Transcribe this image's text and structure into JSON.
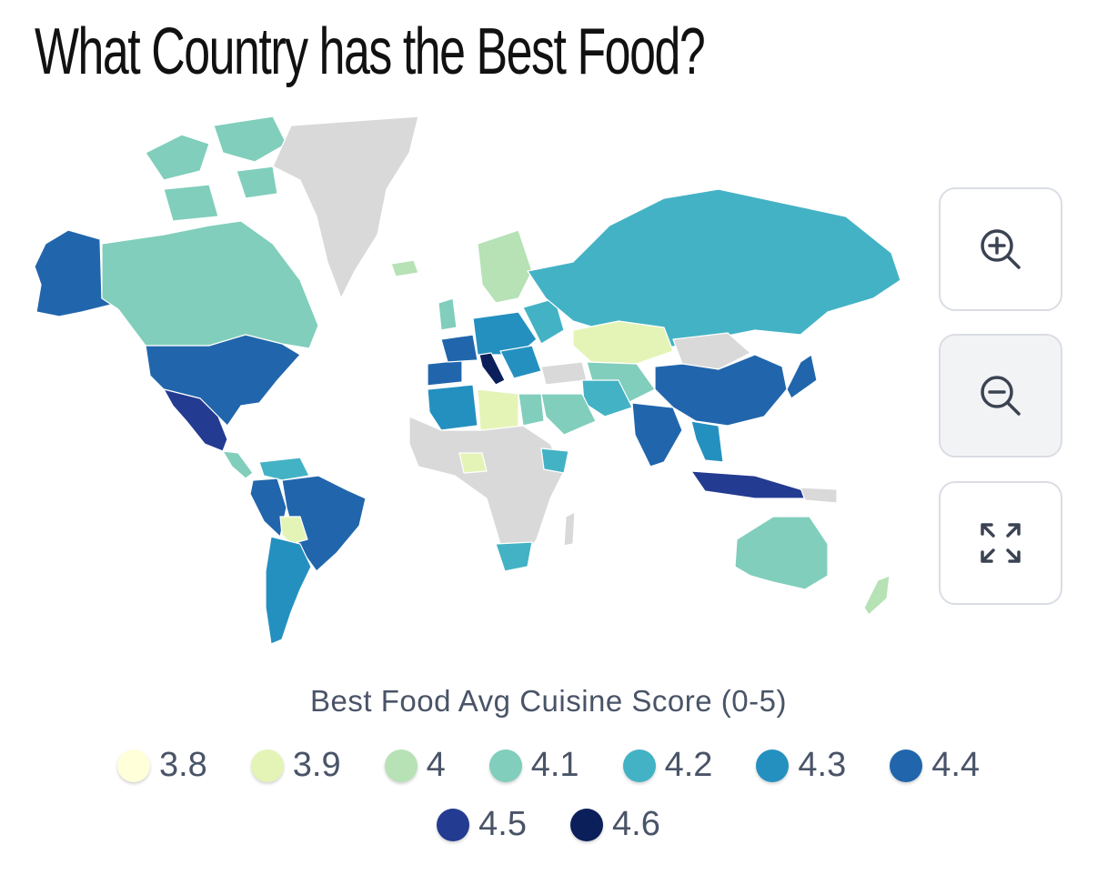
{
  "title": "What Country has the Best Food?",
  "legend": {
    "title": "Best Food Avg Cuisine Score (0-5)",
    "items": [
      {
        "label": "3.8",
        "color": "#ffffd9"
      },
      {
        "label": "3.9",
        "color": "#e4f4b6"
      },
      {
        "label": "4",
        "color": "#b6e2b6"
      },
      {
        "label": "4.1",
        "color": "#80cebb"
      },
      {
        "label": "4.2",
        "color": "#44b2c5"
      },
      {
        "label": "4.3",
        "color": "#2490bf"
      },
      {
        "label": "4.4",
        "color": "#2166ac"
      },
      {
        "label": "4.5",
        "color": "#233b91"
      },
      {
        "label": "4.6",
        "color": "#0b1f5a"
      }
    ]
  },
  "map": {
    "no_data_color": "#d9d9d9",
    "regions": [
      {
        "name": "Alaska",
        "score": "4.4"
      },
      {
        "name": "Canada",
        "score": "4.1"
      },
      {
        "name": "Greenland",
        "score": null
      },
      {
        "name": "United States",
        "score": "4.4"
      },
      {
        "name": "Mexico",
        "score": "4.5"
      },
      {
        "name": "Brazil",
        "score": "4.4"
      },
      {
        "name": "Argentina",
        "score": "4.3"
      },
      {
        "name": "Peru",
        "score": "4.4"
      },
      {
        "name": "Russia",
        "score": "4.2"
      },
      {
        "name": "China",
        "score": "4.4"
      },
      {
        "name": "India",
        "score": "4.4"
      },
      {
        "name": "Kazakhstan",
        "score": "3.9"
      },
      {
        "name": "Australia",
        "score": "4.1"
      },
      {
        "name": "Italy",
        "score": "4.6"
      },
      {
        "name": "France",
        "score": "4.4"
      },
      {
        "name": "Spain",
        "score": "4.4"
      },
      {
        "name": "Japan",
        "score": "4.4"
      },
      {
        "name": "Indonesia",
        "score": "4.5"
      },
      {
        "name": "South Africa",
        "score": "4.2"
      },
      {
        "name": "Saudi Arabia",
        "score": "4.1"
      }
    ]
  },
  "controls": {
    "zoom_in": "zoom-in-icon",
    "zoom_out": "zoom-out-icon",
    "fullscreen": "expand-icon"
  }
}
